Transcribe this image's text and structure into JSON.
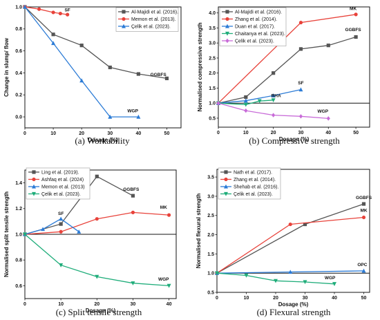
{
  "chart_data": [
    {
      "type": "line",
      "caption": "(a) Workability",
      "xlabel": "Dosage (%)",
      "ylabel": "Change in slump/ flow",
      "xlim": [
        0,
        55
      ],
      "ylim": [
        -0.1,
        1.0
      ],
      "xticks": [
        0,
        10,
        20,
        30,
        40,
        50
      ],
      "yticks": [
        0.0,
        0.2,
        0.4,
        0.6,
        0.8,
        1.0
      ],
      "xtick_labels": [
        "0",
        "10",
        "20",
        "30",
        "40",
        "50"
      ],
      "ytick_labels": [
        "0.0",
        "0.2",
        "0.4",
        "0.6",
        "0.8",
        "1.0"
      ],
      "legend_position": "top-right",
      "series": [
        {
          "name": "Al-Majidi et al. (2016).",
          "color": "#555555",
          "marker": "square",
          "x": [
            0,
            10,
            20,
            30,
            40,
            50
          ],
          "y": [
            1.0,
            0.75,
            0.65,
            0.45,
            0.39,
            0.35
          ]
        },
        {
          "name": "Memon et al. (2013).",
          "color": "#e8423a",
          "marker": "circle",
          "x": [
            0,
            5,
            10,
            12.5,
            15
          ],
          "y": [
            1.0,
            0.98,
            0.95,
            0.94,
            0.93
          ]
        },
        {
          "name": "Çelik et al. (2023).",
          "color": "#2b7bd6",
          "marker": "triangle",
          "x": [
            0,
            10,
            20,
            30,
            40
          ],
          "y": [
            1.0,
            0.67,
            0.33,
            0.0,
            0.0
          ]
        }
      ],
      "annotations": [
        {
          "text": "SF",
          "x": 15,
          "y": 0.96
        },
        {
          "text": "GGBFS",
          "x": 47,
          "y": 0.37
        },
        {
          "text": "WGP",
          "x": 38,
          "y": 0.04
        }
      ]
    },
    {
      "type": "line",
      "caption": "(b) Compressive strength",
      "xlabel": "Dosage (%)",
      "ylabel": "Normalised compressive strength",
      "xlim": [
        0,
        55
      ],
      "ylim": [
        0.2,
        4.2
      ],
      "xticks": [
        0,
        10,
        20,
        30,
        40,
        50
      ],
      "yticks": [
        0.5,
        1.0,
        1.5,
        2.0,
        2.5,
        3.0,
        3.5,
        4.0
      ],
      "xtick_labels": [
        "0",
        "10",
        "20",
        "30",
        "40",
        "50"
      ],
      "ytick_labels": [
        "0.5",
        "1.0",
        "1.5",
        "2.0",
        "2.5",
        "3.0",
        "3.5",
        "4.0"
      ],
      "reference_line": 1.0,
      "legend_position": "top-left",
      "series": [
        {
          "name": "Al-Majidi et al. (2016).",
          "color": "#555555",
          "marker": "square",
          "x": [
            0,
            10,
            20,
            30,
            40,
            50
          ],
          "y": [
            1.0,
            1.2,
            2.0,
            2.8,
            2.92,
            3.2
          ]
        },
        {
          "name": "Zhang et al. (2014).",
          "color": "#e8423a",
          "marker": "circle",
          "x": [
            0,
            30,
            50
          ],
          "y": [
            1.0,
            3.68,
            3.95
          ]
        },
        {
          "name": "Duan et al. (2017).",
          "color": "#2b7bd6",
          "marker": "triangle",
          "x": [
            0,
            10,
            20,
            30
          ],
          "y": [
            1.0,
            1.08,
            1.25,
            1.45
          ]
        },
        {
          "name": "Chaitanya et al. (2023).",
          "color": "#1fad7a",
          "marker": "triangle-down",
          "x": [
            0,
            10,
            15,
            20
          ],
          "y": [
            1.0,
            0.95,
            1.07,
            1.1
          ]
        },
        {
          "name": "Çelik et al. (2023).",
          "color": "#c86bd8",
          "marker": "diamond",
          "x": [
            0,
            10,
            20,
            30,
            40
          ],
          "y": [
            1.0,
            0.75,
            0.6,
            0.56,
            0.49
          ]
        }
      ],
      "annotations": [
        {
          "text": "MK",
          "x": 49,
          "y": 4.1
        },
        {
          "text": "GGBFS",
          "x": 49,
          "y": 3.4
        },
        {
          "text": "SF",
          "x": 30,
          "y": 1.62
        },
        {
          "text": "RHA",
          "x": 21,
          "y": 1.2
        },
        {
          "text": "WGP",
          "x": 38,
          "y": 0.68
        }
      ]
    },
    {
      "type": "line",
      "caption": "(c) Split tensile strength",
      "xlabel": "Dosage (%)",
      "ylabel": "Normalised split tensile strength",
      "xlim": [
        0,
        42
      ],
      "ylim": [
        0.5,
        1.5
      ],
      "xticks": [
        0,
        10,
        20,
        30,
        40
      ],
      "yticks": [
        0.6,
        0.8,
        1.0,
        1.2,
        1.4
      ],
      "xtick_labels": [
        "0",
        "10",
        "20",
        "30",
        "40"
      ],
      "ytick_labels": [
        "0.6",
        "0.8",
        "1.0",
        "1.2",
        "1.4"
      ],
      "reference_line": 1.0,
      "legend_position": "top-left",
      "series": [
        {
          "name": "Ling et al. (2019).",
          "color": "#555555",
          "marker": "square",
          "x": [
            0,
            10,
            20,
            30
          ],
          "y": [
            1.0,
            1.08,
            1.45,
            1.3
          ]
        },
        {
          "name": "Ashfaq et al. (2024)",
          "color": "#e8423a",
          "marker": "circle",
          "x": [
            0,
            10,
            20,
            30,
            40
          ],
          "y": [
            1.0,
            1.02,
            1.12,
            1.17,
            1.15
          ]
        },
        {
          "name": "Memon et al. (2013)",
          "color": "#2b7bd6",
          "marker": "triangle",
          "x": [
            0,
            5,
            10,
            15
          ],
          "y": [
            1.0,
            1.04,
            1.12,
            1.02
          ]
        },
        {
          "name": "Çelik et al. (2023).",
          "color": "#1fad7a",
          "marker": "triangle-down",
          "x": [
            0,
            10,
            20,
            30,
            40
          ],
          "y": [
            1.0,
            0.76,
            0.67,
            0.62,
            0.6
          ]
        }
      ],
      "annotations": [
        {
          "text": "GGBFS",
          "x": 29.5,
          "y": 1.34
        },
        {
          "text": "SF",
          "x": 10,
          "y": 1.15
        },
        {
          "text": "MK",
          "x": 38.5,
          "y": 1.2
        },
        {
          "text": "WGP",
          "x": 38.5,
          "y": 0.64
        }
      ]
    },
    {
      "type": "line",
      "caption": "(d) Flexural strength",
      "xlabel": "Dosage (%)",
      "ylabel": "Normalised flexural strength",
      "xlim": [
        0,
        52
      ],
      "ylim": [
        0.5,
        3.7
      ],
      "xticks": [
        0,
        10,
        20,
        30,
        40,
        50
      ],
      "yticks": [
        0.5,
        1.0,
        1.5,
        2.0,
        2.5,
        3.0,
        3.5
      ],
      "xtick_labels": [
        "0",
        "10",
        "20",
        "30",
        "40",
        "50"
      ],
      "ytick_labels": [
        "0.5",
        "1.0",
        "1.5",
        "2.0",
        "2.5",
        "3.0",
        "3.5"
      ],
      "reference_line": 1.0,
      "legend_position": "top-left",
      "series": [
        {
          "name": "Nath et al. (2017).",
          "color": "#555555",
          "marker": "square",
          "x": [
            0,
            30,
            50
          ],
          "y": [
            1.0,
            2.27,
            2.8
          ]
        },
        {
          "name": "Zhang et al. (2014).",
          "color": "#e8423a",
          "marker": "circle",
          "x": [
            0,
            25,
            50
          ],
          "y": [
            1.0,
            2.27,
            2.45
          ]
        },
        {
          "name": "Shehab et al. (2016).",
          "color": "#2b7bd6",
          "marker": "triangle",
          "x": [
            0,
            25,
            50
          ],
          "y": [
            1.0,
            1.03,
            1.06
          ]
        },
        {
          "name": "Çelik et al. (2023).",
          "color": "#1fad7a",
          "marker": "triangle-down",
          "x": [
            0,
            10,
            20,
            30,
            40
          ],
          "y": [
            1.0,
            0.94,
            0.8,
            0.77,
            0.72
          ]
        }
      ],
      "annotations": [
        {
          "text": "GGBFS",
          "x": 50,
          "y": 2.93
        },
        {
          "text": "MK",
          "x": 50,
          "y": 2.59
        },
        {
          "text": "OPC",
          "x": 49.5,
          "y": 1.18
        },
        {
          "text": "WGP",
          "x": 38.5,
          "y": 0.84
        }
      ]
    }
  ]
}
